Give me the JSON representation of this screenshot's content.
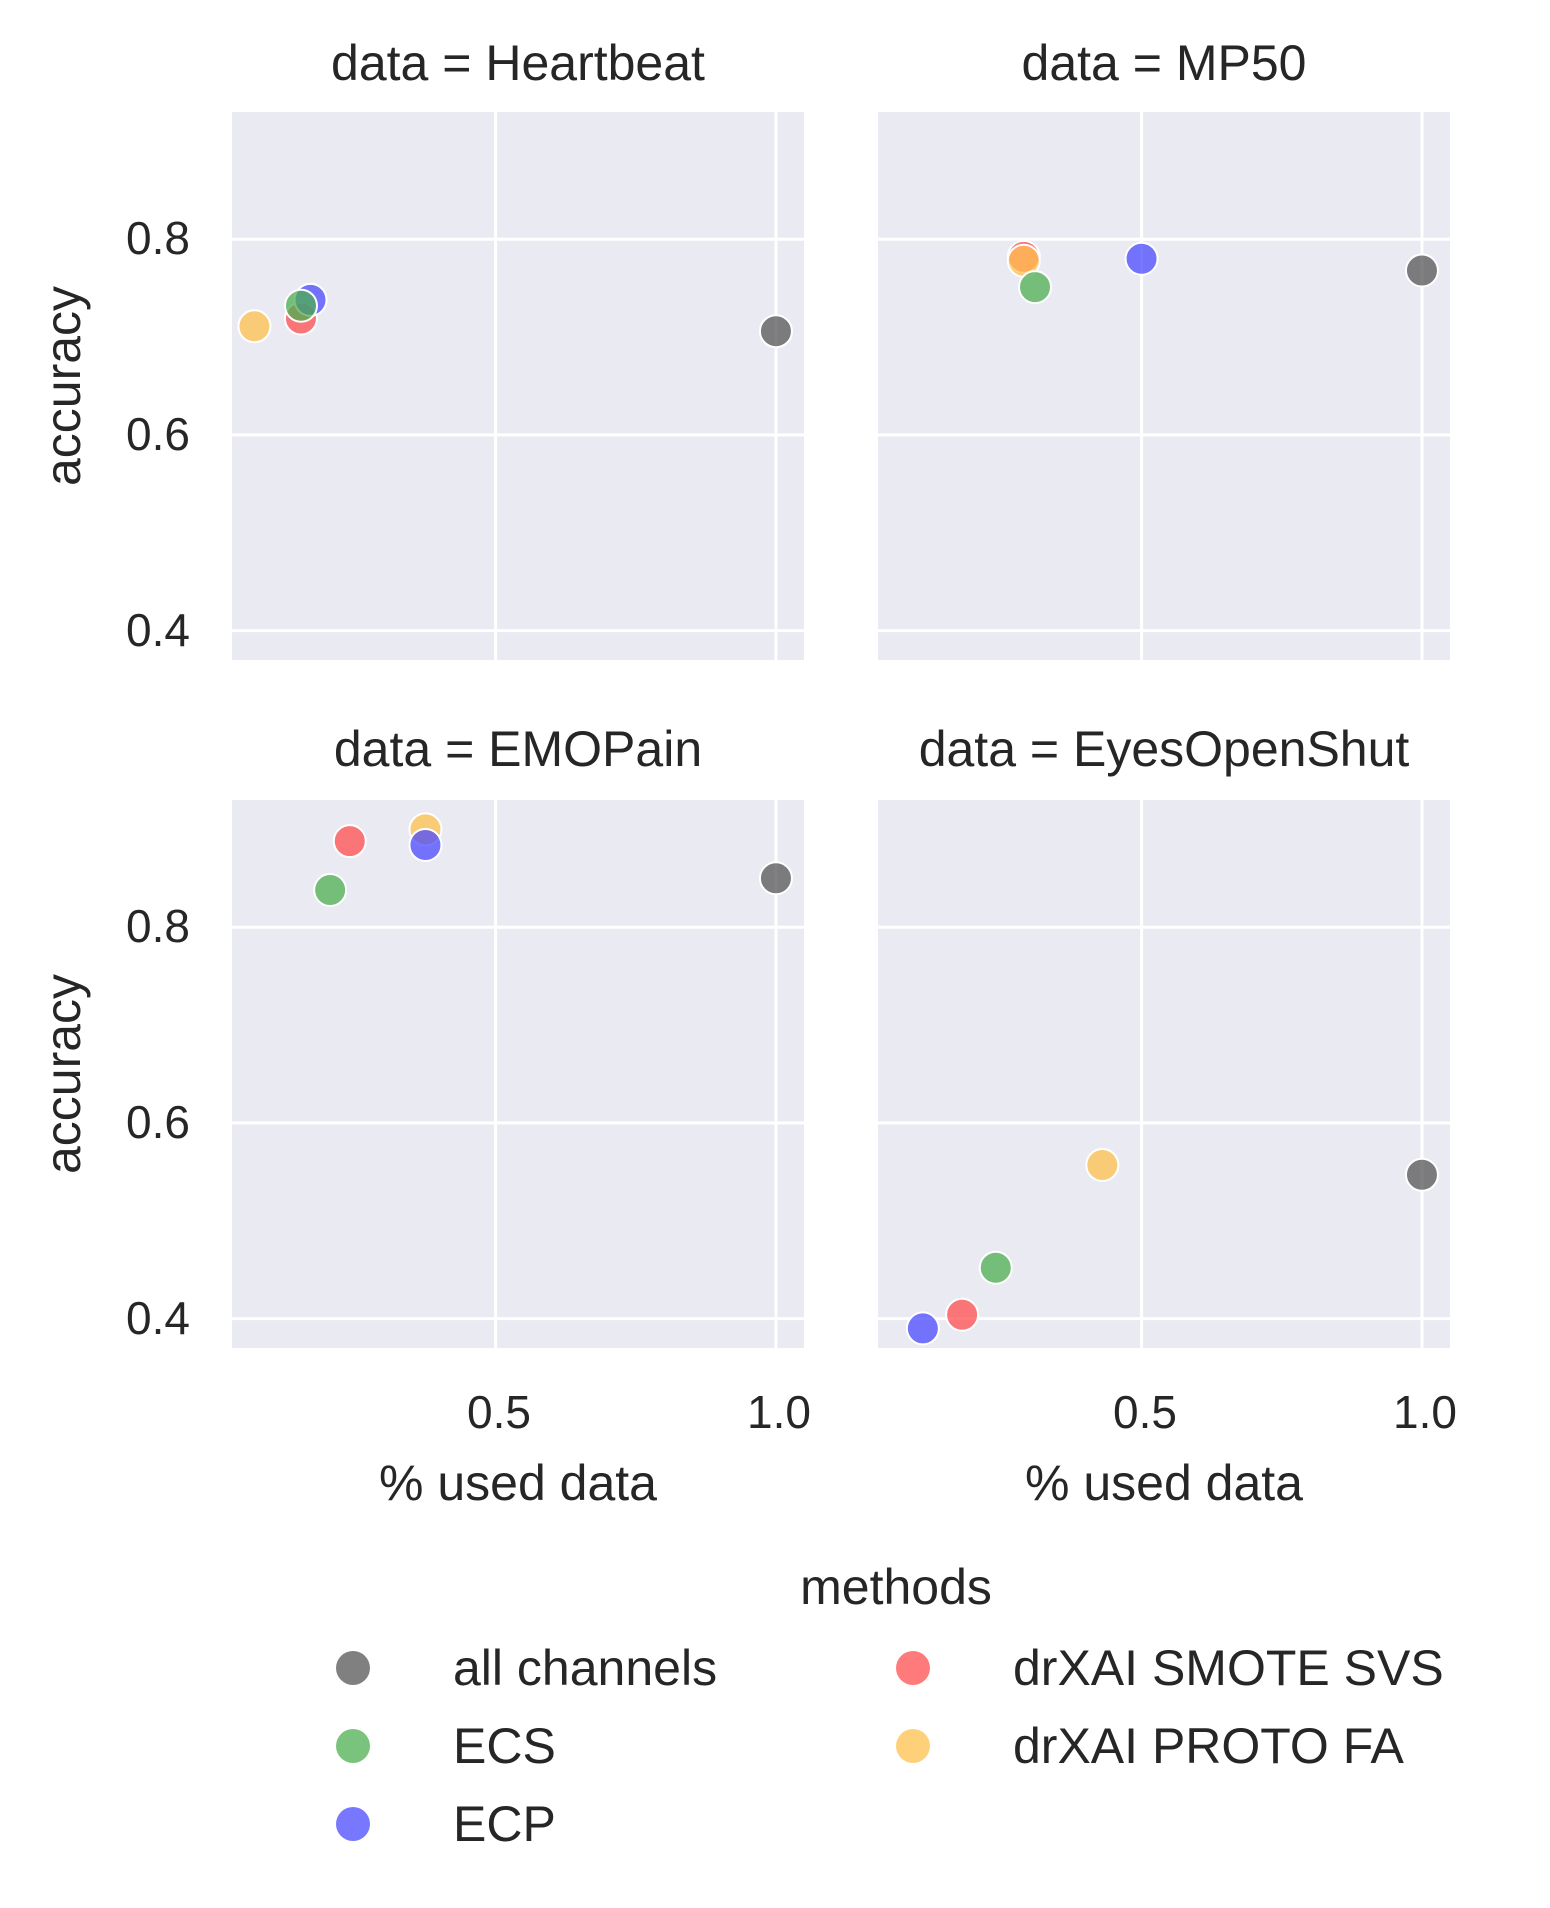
{
  "chart_data": {
    "type": "scatter",
    "layout": "facet-grid 2x2, shared axes",
    "xlabel": "% used data",
    "ylabel": "accuracy",
    "xlim": [
      0.03,
      1.05
    ],
    "ylim": [
      0.37,
      0.93
    ],
    "x_ticks": [
      0.5,
      1.0
    ],
    "x_tick_labels": [
      "0.5",
      "1.0"
    ],
    "y_ticks": [
      0.4,
      0.6,
      0.8
    ],
    "y_tick_labels": [
      "0.4",
      "0.6",
      "0.8"
    ],
    "grid": true,
    "background": "#eaeaf2",
    "legend": {
      "title": "methods",
      "placement": "bottom",
      "columns": 2,
      "entries": [
        {
          "name": "all channels",
          "color": "#555555"
        },
        {
          "name": "ECS",
          "color": "#4caf50"
        },
        {
          "name": "ECP",
          "color": "#4a4aff"
        },
        {
          "name": "drXAI SMOTE SVS",
          "color": "#ff4d4d"
        },
        {
          "name": "drXAI PROTO FA",
          "color": "#ffc04d"
        }
      ]
    },
    "panels": [
      {
        "title": "data = Heartbeat",
        "points": [
          {
            "method": "all channels",
            "x": 1.0,
            "y": 0.706
          },
          {
            "method": "drXAI PROTO FA",
            "x": 0.07,
            "y": 0.711
          },
          {
            "method": "drXAI SMOTE SVS",
            "x": 0.153,
            "y": 0.719
          },
          {
            "method": "ECP",
            "x": 0.17,
            "y": 0.738
          },
          {
            "method": "ECS",
            "x": 0.153,
            "y": 0.732
          }
        ]
      },
      {
        "title": "data = MP50",
        "points": [
          {
            "method": "all channels",
            "x": 1.0,
            "y": 0.768
          },
          {
            "method": "drXAI SMOTE SVS",
            "x": 0.29,
            "y": 0.782
          },
          {
            "method": "drXAI PROTO FA",
            "x": 0.29,
            "y": 0.778
          },
          {
            "method": "ECP",
            "x": 0.5,
            "y": 0.78
          },
          {
            "method": "ECS",
            "x": 0.31,
            "y": 0.751
          }
        ]
      },
      {
        "title": "data = EMOPain",
        "points": [
          {
            "method": "all channels",
            "x": 1.0,
            "y": 0.85
          },
          {
            "method": "drXAI PROTO FA",
            "x": 0.375,
            "y": 0.9
          },
          {
            "method": "drXAI SMOTE SVS",
            "x": 0.24,
            "y": 0.888
          },
          {
            "method": "ECP",
            "x": 0.375,
            "y": 0.884
          },
          {
            "method": "ECS",
            "x": 0.205,
            "y": 0.838
          }
        ]
      },
      {
        "title": "data = EyesOpenShut",
        "points": [
          {
            "method": "all channels",
            "x": 1.0,
            "y": 0.547
          },
          {
            "method": "drXAI PROTO FA",
            "x": 0.43,
            "y": 0.557
          },
          {
            "method": "ECS",
            "x": 0.24,
            "y": 0.452
          },
          {
            "method": "drXAI SMOTE SVS",
            "x": 0.18,
            "y": 0.404
          },
          {
            "method": "ECP",
            "x": 0.11,
            "y": 0.39
          }
        ]
      }
    ]
  }
}
